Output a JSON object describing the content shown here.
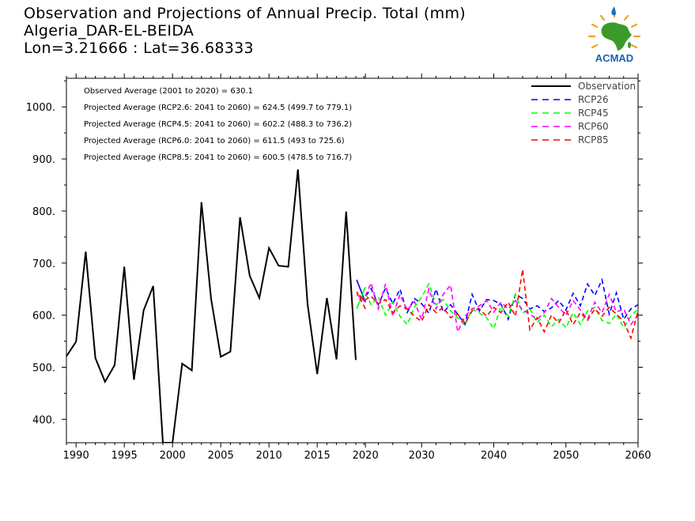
{
  "header": {
    "title_line1": "Observation and Projections of Annual Precip. Total (mm)",
    "title_line2": "Algeria_DAR-EL-BEIDA",
    "title_line3": "Lon=3.21666 : Lat=36.68333"
  },
  "logo": {
    "text": "ACMAD",
    "icon": "africa-map-sun-icon",
    "colors": {
      "africa": "#3a9a2a",
      "sun": "#f0a020",
      "drop": "#1f6fc0",
      "text": "#1f5fb0"
    }
  },
  "annotations": [
    "Observed Average (2001 to 2020) = 630.1",
    "Projected Average (RCP2.6: 2041 to 2060) = 624.5 (499.7 to 779.1)",
    "Projected Average (RCP4.5: 2041 to 2060) = 602.2 (488.3 to 736.2)",
    "Projected Average (RCP6.0: 2041 to 2060) = 611.5 (493 to 725.6)",
    "Projected Average (RCP8.5: 2041 to 2060) = 600.5 (478.5 to 716.7)"
  ],
  "chart_data": {
    "type": "line",
    "title": "Observation and Projections of Annual Precip. Total (mm)",
    "xlim": [
      1989,
      2060
    ],
    "ylim": [
      355,
      1055
    ],
    "x_ticks": [
      1990,
      1995,
      2000,
      2005,
      2010,
      2015,
      2020,
      2030,
      2040,
      2050,
      2060
    ],
    "y_ticks": [
      400,
      500,
      600,
      700,
      800,
      900,
      1000
    ],
    "y_tick_labels": [
      "400.",
      "500.",
      "600.",
      "700.",
      "800.",
      "900.",
      "1000."
    ],
    "legend_position": "top-right",
    "series": [
      {
        "name": "Observation",
        "color": "#000000",
        "dash": "solid",
        "x": [
          1989,
          1990,
          1991,
          1992,
          1993,
          1994,
          1995,
          1996,
          1997,
          1998,
          1999,
          2000,
          2001,
          2002,
          2003,
          2004,
          2005,
          2006,
          2007,
          2008,
          2009,
          2010,
          2011,
          2012,
          2013,
          2014,
          2015,
          2016,
          2017,
          2018,
          2019,
          2020
        ],
        "values": [
          521,
          549,
          722,
          518,
          472,
          504,
          693,
          476,
          609,
          656,
          355,
          355,
          507,
          494,
          817,
          631,
          520,
          530,
          788,
          676,
          633,
          729,
          695,
          693,
          880,
          621,
          487,
          633,
          515,
          799,
          514,
          null
        ]
      },
      {
        "name": "RCP26",
        "color": "#0000ff",
        "dash": "dashed",
        "x": [
          2020,
          2021,
          2022,
          2023,
          2024,
          2025,
          2026,
          2027,
          2028,
          2029,
          2030,
          2031,
          2032,
          2033,
          2034,
          2035,
          2036,
          2037,
          2038,
          2039,
          2040,
          2041,
          2042,
          2043,
          2044,
          2045,
          2046,
          2047,
          2048,
          2049,
          2050,
          2051,
          2052,
          2053,
          2054,
          2055,
          2056,
          2057,
          2058,
          2059,
          2060
        ],
        "values": [
          625,
          668,
          632,
          651,
          620,
          652,
          622,
          650,
          605,
          632,
          622,
          604,
          650,
          606,
          620,
          602,
          582,
          640,
          608,
          630,
          628,
          621,
          592,
          640,
          632,
          612,
          618,
          607,
          614,
          628,
          610,
          642,
          618,
          660,
          638,
          668,
          602,
          643,
          592,
          612,
          620
        ]
      },
      {
        "name": "RCP45",
        "color": "#00ff00",
        "dash": "dashed",
        "x": [
          2020,
          2021,
          2022,
          2023,
          2024,
          2025,
          2026,
          2027,
          2028,
          2029,
          2030,
          2031,
          2032,
          2033,
          2034,
          2035,
          2036,
          2037,
          2038,
          2039,
          2040,
          2041,
          2042,
          2043,
          2044,
          2045,
          2046,
          2047,
          2048,
          2049,
          2050,
          2051,
          2052,
          2053,
          2054,
          2055,
          2056,
          2057,
          2058,
          2059,
          2060
        ],
        "values": [
          654,
          612,
          648,
          620,
          635,
          600,
          625,
          598,
          582,
          615,
          635,
          660,
          620,
          630,
          608,
          595,
          580,
          612,
          604,
          595,
          574,
          618,
          598,
          640,
          604,
          612,
          586,
          600,
          578,
          592,
          576,
          605,
          582,
          608,
          615,
          590,
          584,
          602,
          576,
          598,
          612
        ]
      },
      {
        "name": "RCP60",
        "color": "#ff00ff",
        "dash": "dashed",
        "x": [
          2020,
          2021,
          2022,
          2023,
          2024,
          2025,
          2026,
          2027,
          2028,
          2029,
          2030,
          2031,
          2032,
          2033,
          2034,
          2035,
          2036,
          2037,
          2038,
          2039,
          2040,
          2041,
          2042,
          2043,
          2044,
          2045,
          2046,
          2047,
          2048,
          2049,
          2050,
          2051,
          2052,
          2053,
          2054,
          2055,
          2056,
          2057,
          2058,
          2059,
          2060
        ],
        "values": [
          625,
          640,
          631,
          662,
          612,
          660,
          598,
          640,
          610,
          626,
          592,
          650,
          612,
          640,
          658,
          568,
          598,
          612,
          618,
          628,
          606,
          625,
          612,
          628,
          610,
          602,
          592,
          605,
          632,
          615,
          600,
          628,
          610,
          592,
          625,
          605,
          640,
          606,
          612,
          582,
          600
        ]
      },
      {
        "name": "RCP85",
        "color": "#ff0000",
        "dash": "dashed",
        "x": [
          2020,
          2021,
          2022,
          2023,
          2024,
          2025,
          2026,
          2027,
          2028,
          2029,
          2030,
          2031,
          2032,
          2033,
          2034,
          2035,
          2036,
          2037,
          2038,
          2039,
          2040,
          2041,
          2042,
          2043,
          2044,
          2045,
          2046,
          2047,
          2048,
          2049,
          2050,
          2051,
          2052,
          2053,
          2054,
          2055,
          2056,
          2057,
          2058,
          2059,
          2060
        ],
        "values": [
          612,
          645,
          628,
          636,
          622,
          630,
          605,
          618,
          612,
          598,
          588,
          620,
          605,
          615,
          595,
          602,
          585,
          608,
          612,
          598,
          615,
          605,
          625,
          598,
          688,
          572,
          595,
          568,
          600,
          585,
          610,
          582,
          605,
          590,
          612,
          598,
          615,
          602,
          588,
          556,
          608
        ]
      }
    ]
  }
}
